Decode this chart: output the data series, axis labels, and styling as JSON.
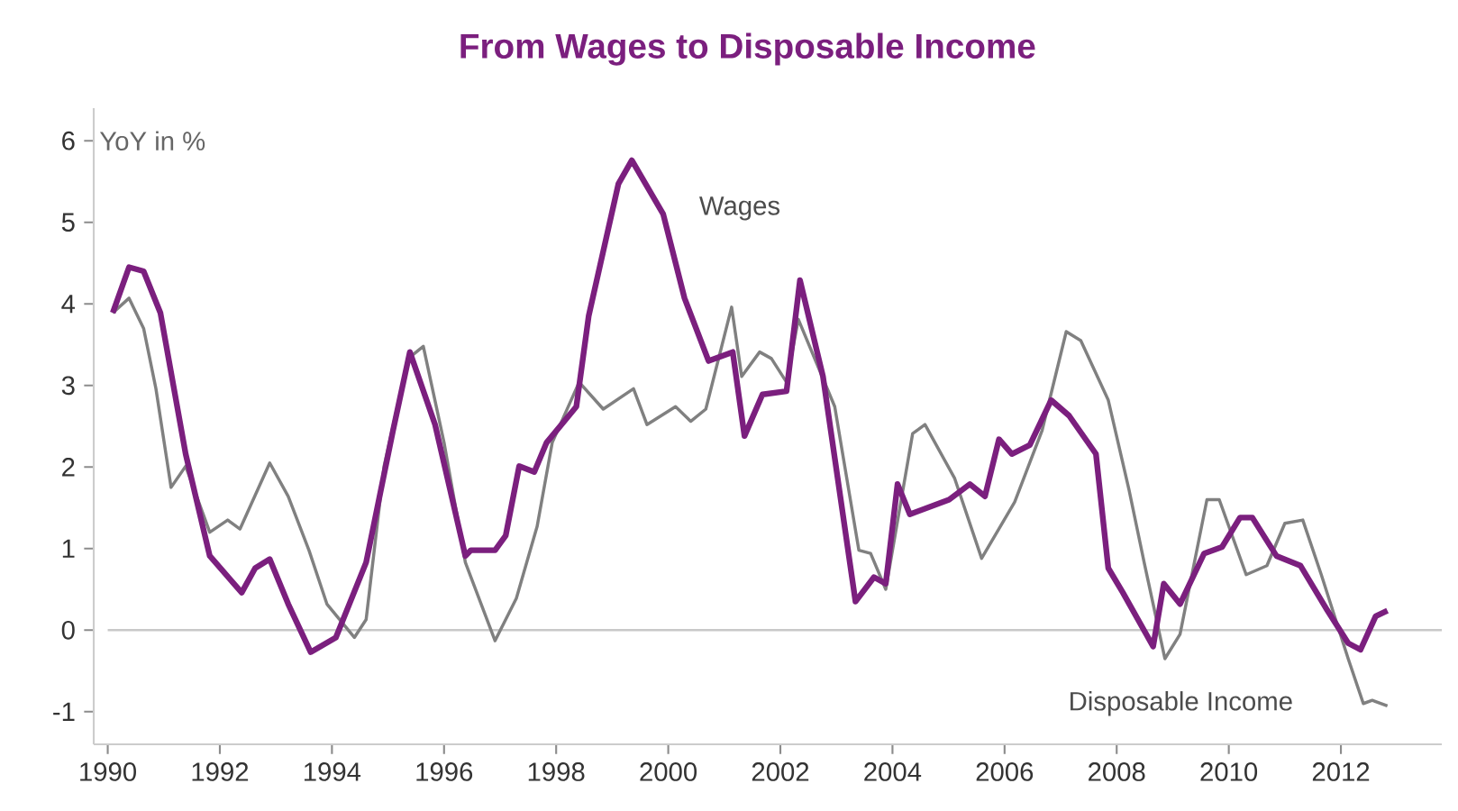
{
  "chart_data": {
    "type": "line",
    "title": "From Wages to Disposable Income",
    "ylabel": "YoY in %",
    "xlim": [
      1989.75,
      2013.8
    ],
    "ylim": [
      -1.4,
      6.4
    ],
    "xticks": [
      1990,
      1992,
      1994,
      1996,
      1998,
      2000,
      2002,
      2004,
      2006,
      2008,
      2010,
      2012
    ],
    "yticks": [
      -1,
      0,
      1,
      2,
      3,
      4,
      5,
      6
    ],
    "grid": false,
    "marker": "none",
    "line_style": "solid",
    "ref_lines": [
      {
        "axis": "y",
        "value": 0,
        "color": "#c8c8c8"
      }
    ],
    "series": [
      {
        "name": "Wages",
        "color": "#7b1f7e",
        "x": [
          1990.09,
          1990.38,
          1990.64,
          1990.94,
          1991.39,
          1991.82,
          1992.39,
          1992.63,
          1992.89,
          1993.22,
          1993.62,
          1994.07,
          1994.61,
          1995.09,
          1995.39,
          1995.84,
          1996.38,
          1996.48,
          1996.91,
          1997.1,
          1997.34,
          1997.61,
          1997.83,
          1998.36,
          1998.58,
          1999.11,
          1999.35,
          1999.91,
          2000.29,
          2000.72,
          2001.15,
          2001.36,
          2001.68,
          2002.11,
          2002.35,
          2002.76,
          2003.34,
          2003.67,
          2003.88,
          2004.09,
          2004.31,
          2005.01,
          2005.38,
          2005.65,
          2005.9,
          2006.13,
          2006.45,
          2006.83,
          2007.15,
          2007.63,
          2007.85,
          2008.11,
          2008.65,
          2008.84,
          2009.13,
          2009.56,
          2009.88,
          2010.2,
          2010.42,
          2010.85,
          2011.28,
          2011.76,
          2012.13,
          2012.35,
          2012.62,
          2012.83
        ],
        "values": [
          3.89,
          4.45,
          4.4,
          3.89,
          2.16,
          0.91,
          0.46,
          0.76,
          0.87,
          0.32,
          -0.27,
          -0.09,
          0.83,
          2.45,
          3.41,
          2.52,
          0.91,
          0.98,
          0.98,
          1.16,
          2.01,
          1.94,
          2.3,
          2.74,
          3.85,
          5.47,
          5.76,
          5.1,
          4.07,
          3.3,
          3.41,
          2.38,
          2.89,
          2.93,
          4.29,
          3.11,
          0.35,
          0.65,
          0.57,
          1.79,
          1.42,
          1.6,
          1.79,
          1.64,
          2.34,
          2.16,
          2.27,
          2.82,
          2.63,
          2.16,
          0.76,
          0.46,
          -0.2,
          0.57,
          0.32,
          0.94,
          1.02,
          1.38,
          1.38,
          0.91,
          0.79,
          0.24,
          -0.16,
          -0.24,
          0.17,
          0.24
        ]
      },
      {
        "name": "Disposable Income",
        "color": "#808080",
        "x": [
          1990.09,
          1990.38,
          1990.64,
          1990.86,
          1991.13,
          1991.39,
          1991.82,
          1992.14,
          1992.36,
          1992.89,
          1993.22,
          1993.59,
          1993.91,
          1994.4,
          1994.61,
          1994.93,
          1995.36,
          1995.63,
          1996.0,
          1996.38,
          1996.91,
          1997.29,
          1997.66,
          1997.93,
          1998.41,
          1998.84,
          1999.38,
          1999.62,
          2000.13,
          2000.4,
          2000.67,
          2001.13,
          2001.31,
          2001.63,
          2001.84,
          2002.11,
          2002.32,
          2002.97,
          2003.4,
          2003.61,
          2003.88,
          2004.36,
          2004.58,
          2005.11,
          2005.59,
          2006.18,
          2006.67,
          2007.1,
          2007.36,
          2007.85,
          2008.22,
          2008.49,
          2008.86,
          2009.13,
          2009.61,
          2009.83,
          2010.31,
          2010.68,
          2011.0,
          2011.32,
          2011.65,
          2012.13,
          2012.4,
          2012.56,
          2012.83
        ],
        "values": [
          3.89,
          4.07,
          3.7,
          2.96,
          1.75,
          2.01,
          1.2,
          1.35,
          1.24,
          2.05,
          1.64,
          0.98,
          0.32,
          -0.09,
          0.13,
          2.01,
          3.33,
          3.48,
          2.3,
          0.83,
          -0.13,
          0.39,
          1.27,
          2.3,
          3.04,
          2.71,
          2.96,
          2.52,
          2.74,
          2.56,
          2.71,
          3.96,
          3.11,
          3.41,
          3.33,
          3.04,
          3.81,
          2.74,
          0.98,
          0.94,
          0.5,
          2.41,
          2.52,
          1.86,
          0.88,
          1.57,
          2.45,
          3.66,
          3.55,
          2.82,
          1.72,
          0.83,
          -0.35,
          -0.05,
          1.6,
          1.6,
          0.68,
          0.79,
          1.31,
          1.35,
          0.68,
          -0.35,
          -0.9,
          -0.86,
          -0.93
        ]
      }
    ]
  }
}
